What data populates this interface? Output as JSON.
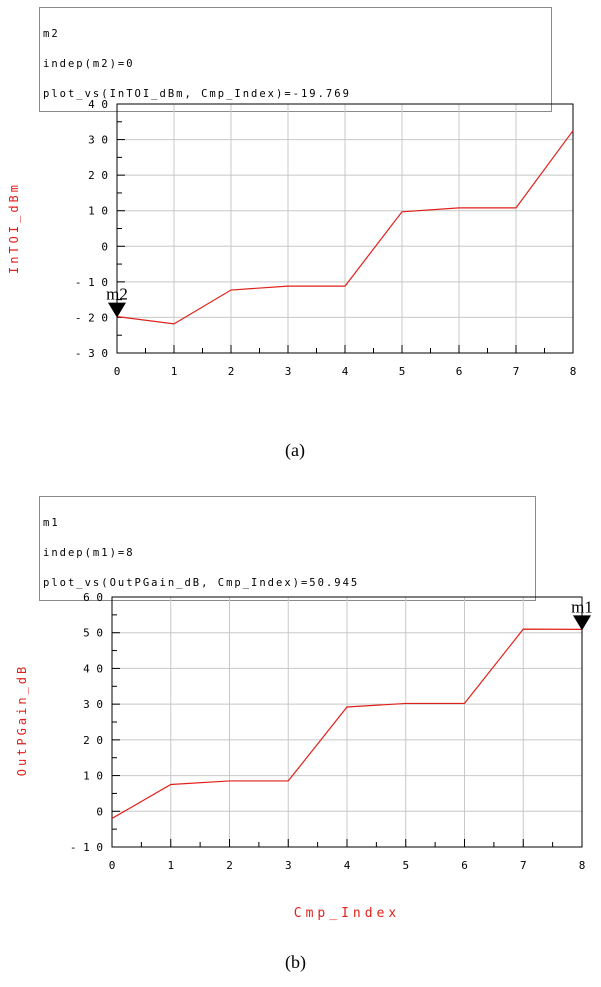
{
  "chart_data": [
    {
      "id": "a",
      "type": "line",
      "caption": "(a)",
      "marker_box": [
        "m2",
        "indep(m2)=0",
        "plot_vs(InTOI_dBm, Cmp_Index)=-19.769"
      ],
      "ylabel": "InTOI_dBm",
      "xlabel": "",
      "xlim": [
        0,
        8
      ],
      "ylim": [
        -30,
        40
      ],
      "xticks": [
        0,
        1,
        2,
        3,
        4,
        5,
        6,
        7,
        8
      ],
      "yticks": [
        -30,
        -20,
        -10,
        0,
        10,
        20,
        30,
        40
      ],
      "ytick_labels": [
        "- 3 0",
        "- 2 0",
        "- 1 0",
        "0",
        "1 0",
        "2 0",
        "3 0",
        "4 0"
      ],
      "grid": true,
      "line_color": "#e0201a",
      "x": [
        0,
        1,
        2,
        3,
        4,
        5,
        6,
        7,
        8
      ],
      "y": [
        -19.769,
        -21.8,
        -12.3,
        -11.2,
        -11.2,
        9.7,
        10.8,
        10.8,
        32.5
      ],
      "marker": {
        "label": "m2",
        "x": 0,
        "y": -19.769
      }
    },
    {
      "id": "b",
      "type": "line",
      "caption": "(b)",
      "marker_box": [
        "m1",
        "indep(m1)=8",
        "plot_vs(OutPGain_dB, Cmp_Index)=50.945"
      ],
      "ylabel": "OutPGain_dB",
      "xlabel": "Cmp_Index",
      "xlim": [
        0,
        8
      ],
      "ylim": [
        -10,
        60
      ],
      "xticks": [
        0,
        1,
        2,
        3,
        4,
        5,
        6,
        7,
        8
      ],
      "yticks": [
        -10,
        0,
        10,
        20,
        30,
        40,
        50,
        60
      ],
      "ytick_labels": [
        "- 1 0",
        "0",
        "1 0",
        "2 0",
        "3 0",
        "4 0",
        "5 0",
        "6 0"
      ],
      "grid": true,
      "line_color": "#e0201a",
      "x": [
        0,
        1,
        2,
        3,
        4,
        5,
        6,
        7,
        8
      ],
      "y": [
        -2,
        7.5,
        8.5,
        8.5,
        29.2,
        30.2,
        30.2,
        51.0,
        50.945
      ],
      "marker": {
        "label": "m1",
        "x": 8,
        "y": 50.945
      }
    }
  ]
}
